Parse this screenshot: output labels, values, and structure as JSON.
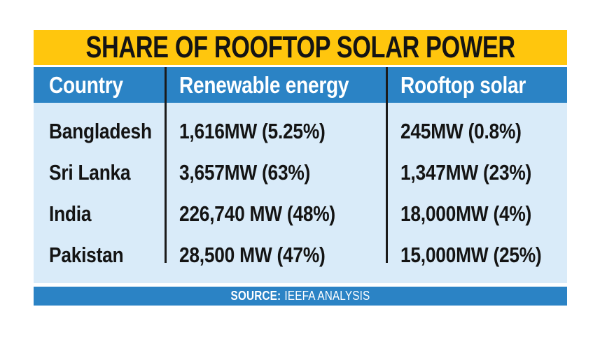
{
  "title": "SHARE OF ROOFTOP SOLAR POWER",
  "table": {
    "columns": [
      {
        "label": "Country"
      },
      {
        "label": "Renewable energy"
      },
      {
        "label": "Rooftop solar"
      }
    ],
    "rows": [
      {
        "country": "Bangladesh",
        "renewable": "1,616MW (5.25%)",
        "rooftop": "245MW (0.8%)"
      },
      {
        "country": "Sri Lanka",
        "renewable": "3,657MW (63%)",
        "rooftop": "1,347MW (23%)"
      },
      {
        "country": "India",
        "renewable": "226,740 MW (48%)",
        "rooftop": "18,000MW (4%)"
      },
      {
        "country": "Pakistan",
        "renewable": "28,500 MW (47%)",
        "rooftop": "15,000MW (25%)"
      }
    ]
  },
  "footer": {
    "source_label": "SOURCE:",
    "source_value": "IEEFA ANALYSIS"
  },
  "colors": {
    "title_bg": "#ffc60d",
    "header_bg": "#2b83c5",
    "body_bg": "#d9ebf9",
    "footer_bg": "#2b83c5",
    "text_dark": "#141414",
    "text_light": "#ffffff",
    "divider": "#1b1b1b"
  },
  "chart_data": {
    "type": "table",
    "title": "SHARE OF ROOFTOP SOLAR POWER",
    "columns": [
      "Country",
      "Renewable energy",
      "Rooftop solar"
    ],
    "rows": [
      [
        "Bangladesh",
        "1,616MW (5.25%)",
        "245MW (0.8%)"
      ],
      [
        "Sri Lanka",
        "3,657MW (63%)",
        "1,347MW (23%)"
      ],
      [
        "India",
        "226,740 MW (48%)",
        "18,000MW (4%)"
      ],
      [
        "Pakistan",
        "28,500 MW (47%)",
        "15,000MW (25%)"
      ]
    ],
    "numeric": {
      "renewable_mw": [
        1616,
        3657,
        226740,
        28500
      ],
      "renewable_pct": [
        5.25,
        63,
        48,
        47
      ],
      "rooftop_mw": [
        245,
        1347,
        18000,
        15000
      ],
      "rooftop_pct": [
        0.8,
        23,
        4,
        25
      ]
    },
    "source": "SOURCE: IEEFA ANALYSIS"
  }
}
